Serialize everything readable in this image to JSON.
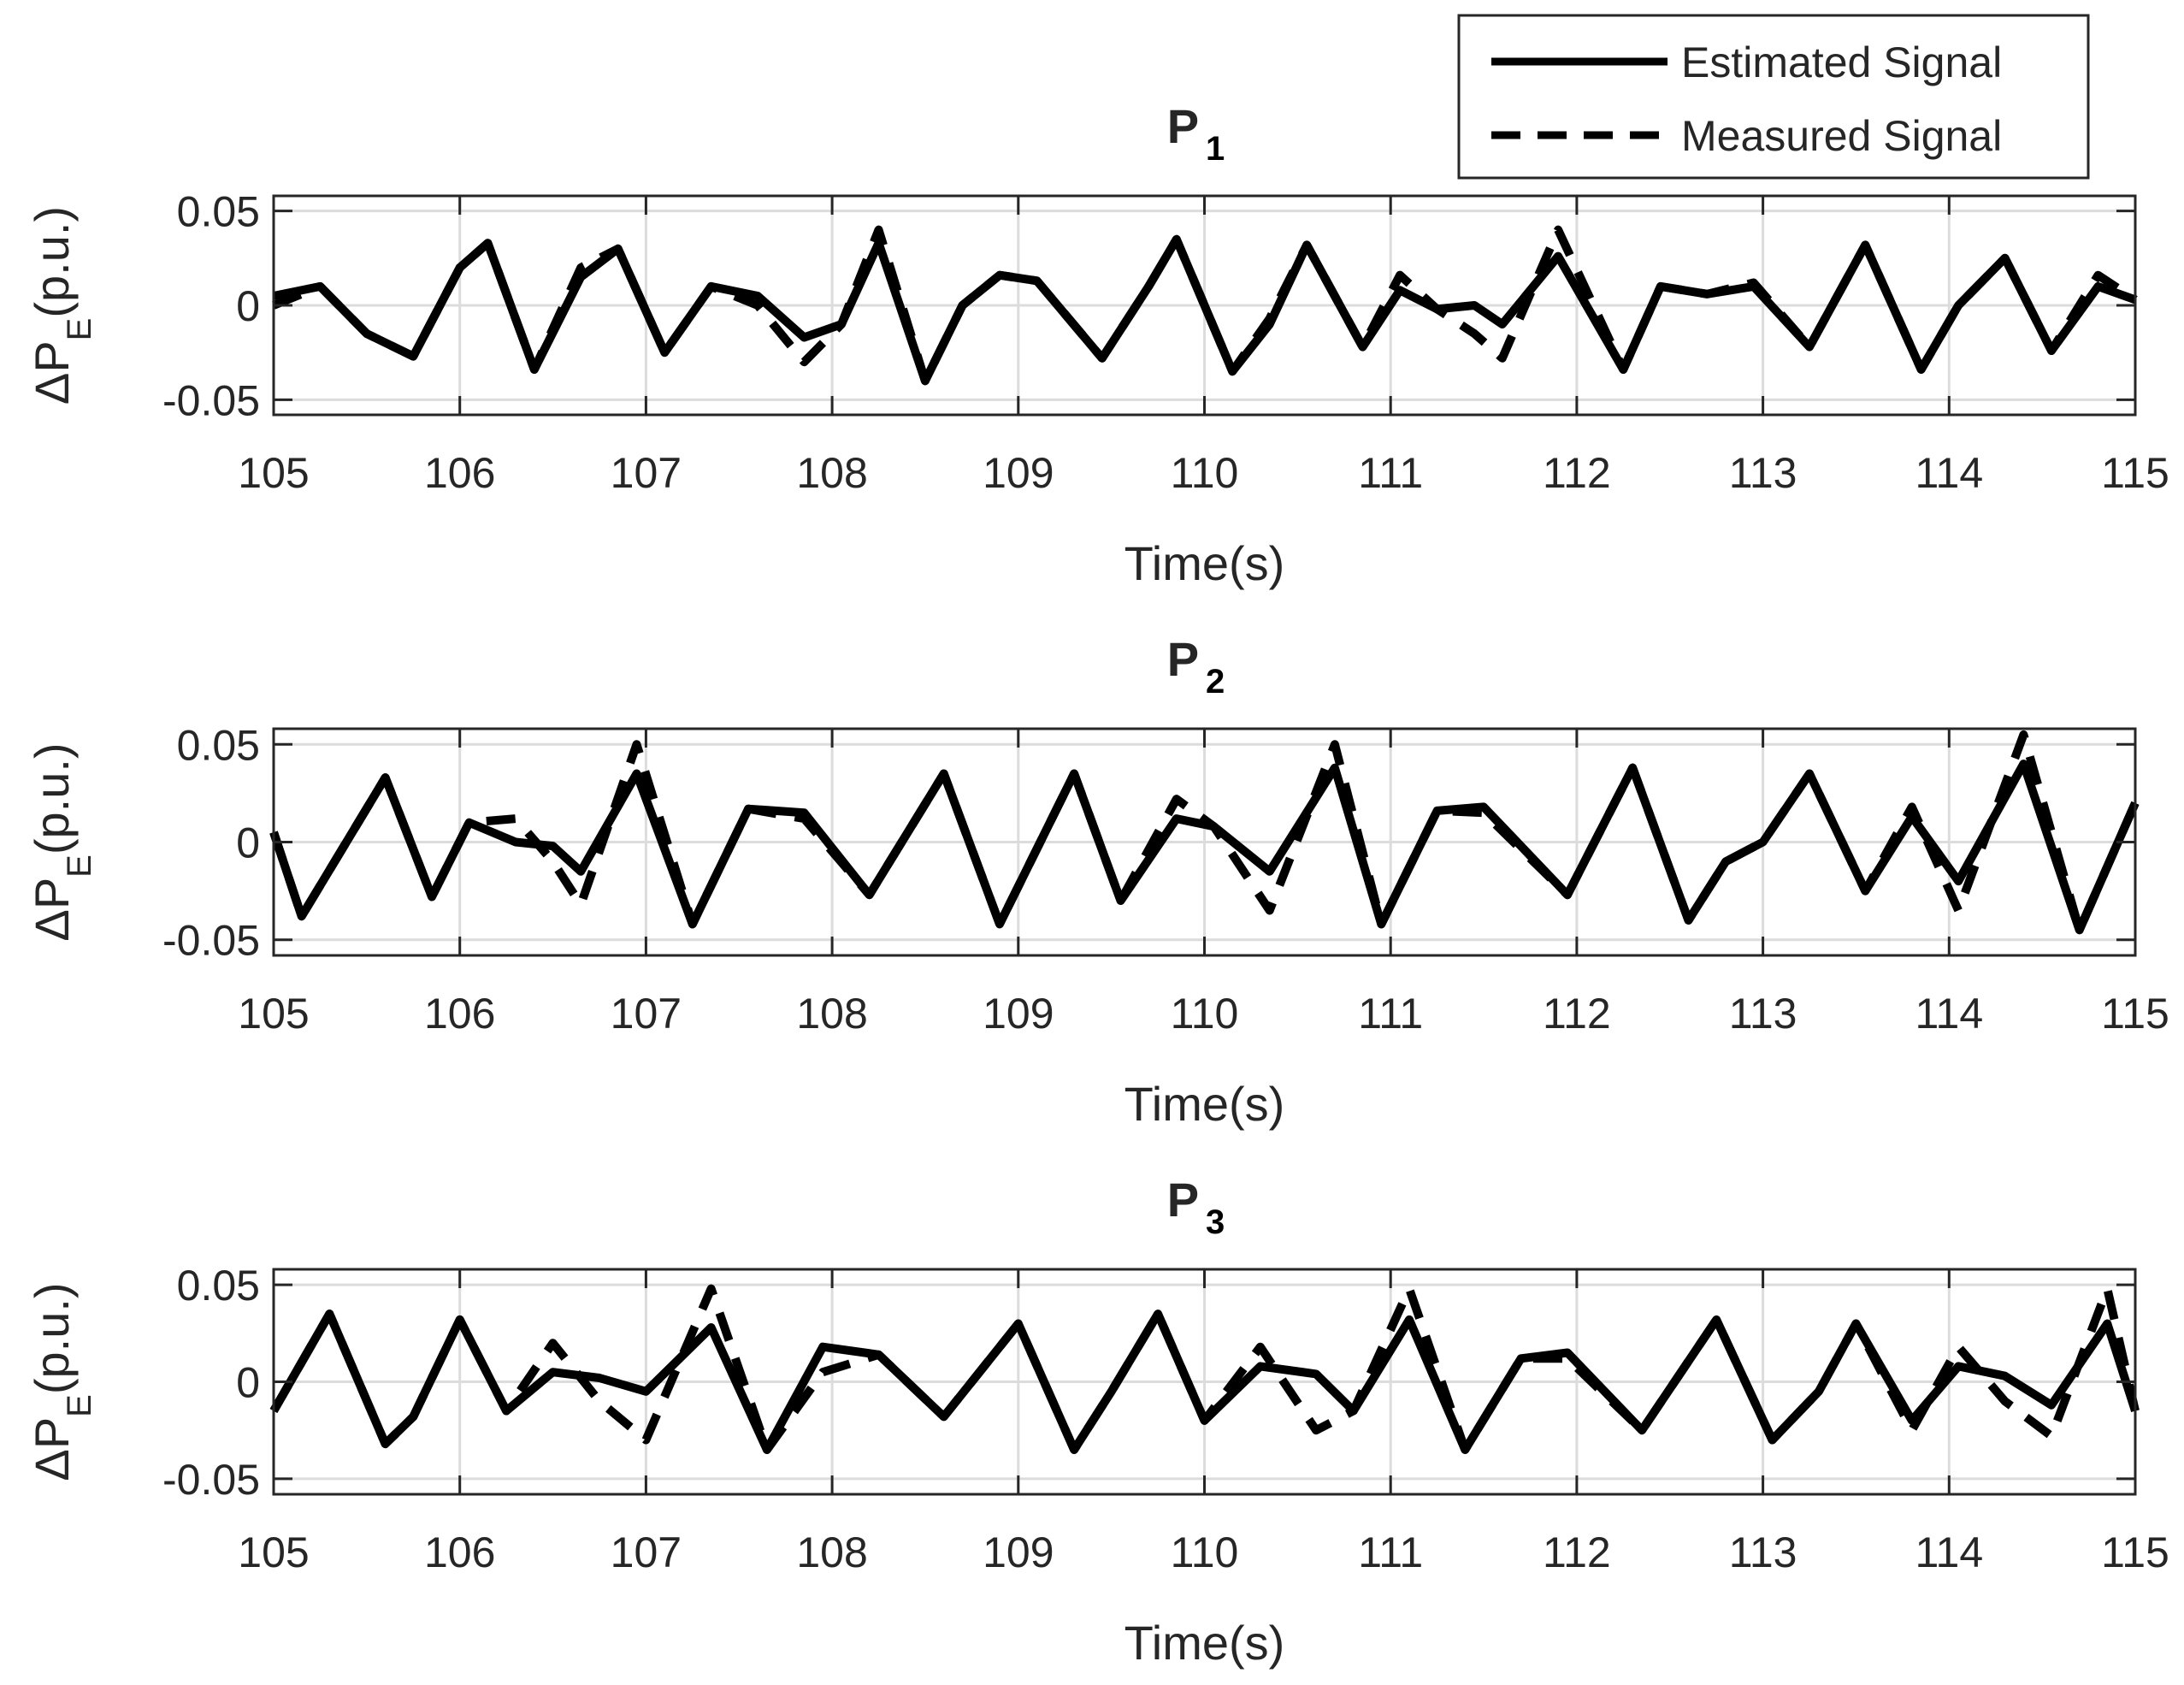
{
  "chart_data": [
    {
      "type": "line",
      "title": "P",
      "title_sub": "1",
      "ylabel": "ΔP",
      "ylabel_sub": "E",
      "ylabel_tail": "(p.u.)",
      "xlabel": "Time(s)",
      "xlim": [
        105,
        115
      ],
      "ylim": [
        -0.058,
        0.058
      ],
      "xticks": [
        105,
        106,
        107,
        108,
        109,
        110,
        111,
        112,
        113,
        114,
        115
      ],
      "xtick_labels": [
        "105",
        "106",
        "107",
        "108",
        "109",
        "110",
        "111",
        "112",
        "113",
        "114",
        "115"
      ],
      "yticks": [
        -0.05,
        0,
        0.05
      ],
      "ytick_labels": [
        "-0.05",
        "0",
        "0.05"
      ],
      "grid": true,
      "x": [
        105,
        105.25,
        105.5,
        105.75,
        106,
        106.15,
        106.4,
        106.65,
        106.85,
        107.1,
        107.35,
        107.6,
        107.85,
        108.05,
        108.25,
        108.5,
        108.7,
        108.9,
        109.1,
        109.45,
        109.7,
        109.85,
        110.15,
        110.35,
        110.55,
        110.85,
        111.05,
        111.25,
        111.45,
        111.6,
        111.9,
        112.25,
        112.45,
        112.7,
        112.95,
        113.25,
        113.55,
        113.85,
        114.05,
        114.3,
        114.55,
        114.8,
        115
      ],
      "series": [
        {
          "name": "Estimated Signal",
          "style": "solid",
          "values": [
            0.005,
            0.01,
            -0.015,
            -0.027,
            0.02,
            0.033,
            -0.034,
            0.015,
            0.03,
            -0.025,
            0.01,
            0.005,
            -0.017,
            -0.01,
            0.033,
            -0.04,
            0.0,
            0.016,
            0.013,
            -0.028,
            0.01,
            0.035,
            -0.035,
            -0.01,
            0.032,
            -0.022,
            0.008,
            -0.002,
            0.0,
            -0.01,
            0.026,
            -0.034,
            0.01,
            0.006,
            0.01,
            -0.022,
            0.032,
            -0.034,
            0.0,
            0.025,
            -0.024,
            0.01,
            0.003
          ]
        },
        {
          "name": "Measured Signal",
          "style": "dashed",
          "values": [
            0.0,
            0.01,
            -0.015,
            -0.027,
            0.02,
            0.033,
            -0.034,
            0.02,
            0.03,
            -0.025,
            0.01,
            0.0,
            -0.03,
            -0.01,
            0.04,
            -0.04,
            0.0,
            0.016,
            0.013,
            -0.028,
            0.01,
            0.035,
            -0.035,
            -0.007,
            0.032,
            -0.022,
            0.016,
            -0.002,
            -0.015,
            -0.028,
            0.04,
            -0.034,
            0.01,
            0.006,
            0.012,
            -0.022,
            0.032,
            -0.034,
            0.0,
            0.025,
            -0.024,
            0.016,
            0.003
          ]
        }
      ]
    },
    {
      "type": "line",
      "title": "P",
      "title_sub": "2",
      "ylabel": "ΔP",
      "ylabel_sub": "E",
      "ylabel_tail": "(p.u.)",
      "xlabel": "Time(s)",
      "xlim": [
        105,
        115
      ],
      "ylim": [
        -0.058,
        0.058
      ],
      "xticks": [
        105,
        106,
        107,
        108,
        109,
        110,
        111,
        112,
        113,
        114,
        115
      ],
      "xtick_labels": [
        "105",
        "106",
        "107",
        "108",
        "109",
        "110",
        "111",
        "112",
        "113",
        "114",
        "115"
      ],
      "yticks": [
        -0.05,
        0,
        0.05
      ],
      "ytick_labels": [
        "-0.05",
        "0",
        "0.05"
      ],
      "grid": true,
      "x": [
        105,
        105.15,
        105.6,
        105.85,
        106.05,
        106.3,
        106.5,
        106.65,
        106.95,
        107.25,
        107.55,
        107.85,
        108.2,
        108.6,
        108.9,
        109.3,
        109.55,
        109.85,
        110.05,
        110.35,
        110.7,
        110.95,
        111.25,
        111.5,
        111.95,
        112.3,
        112.6,
        112.8,
        113.0,
        113.25,
        113.55,
        113.8,
        114.05,
        114.4,
        114.7,
        115
      ],
      "series": [
        {
          "name": "Estimated Signal",
          "style": "solid",
          "values": [
            0.005,
            -0.038,
            0.033,
            -0.028,
            0.01,
            0.0,
            -0.002,
            -0.015,
            0.035,
            -0.042,
            0.017,
            0.015,
            -0.027,
            0.035,
            -0.042,
            0.035,
            -0.03,
            0.012,
            0.008,
            -0.015,
            0.038,
            -0.042,
            0.016,
            0.018,
            -0.027,
            0.038,
            -0.04,
            -0.01,
            0.0,
            0.035,
            -0.025,
            0.013,
            -0.02,
            0.04,
            -0.045,
            0.02
          ]
        },
        {
          "name": "Measured Signal",
          "style": "dashed",
          "values": [
            0.005,
            -0.038,
            0.033,
            -0.028,
            0.01,
            0.012,
            -0.01,
            -0.032,
            0.05,
            -0.042,
            0.017,
            0.012,
            -0.027,
            0.035,
            -0.042,
            0.035,
            -0.03,
            0.022,
            0.008,
            -0.035,
            0.05,
            -0.042,
            0.016,
            0.015,
            -0.027,
            0.038,
            -0.04,
            -0.01,
            0.0,
            0.035,
            -0.025,
            0.018,
            -0.035,
            0.055,
            -0.045,
            0.02
          ]
        }
      ]
    },
    {
      "type": "line",
      "title": "P",
      "title_sub": "3",
      "ylabel": "ΔP",
      "ylabel_sub": "E",
      "ylabel_tail": "(p.u.)",
      "xlabel": "Time(s)",
      "xlim": [
        105,
        115
      ],
      "ylim": [
        -0.058,
        0.058
      ],
      "xticks": [
        105,
        106,
        107,
        108,
        109,
        110,
        111,
        112,
        113,
        114,
        115
      ],
      "xtick_labels": [
        "105",
        "106",
        "107",
        "108",
        "109",
        "110",
        "111",
        "112",
        "113",
        "114",
        "115"
      ],
      "yticks": [
        -0.05,
        0,
        0.05
      ],
      "ytick_labels": [
        "-0.05",
        "0",
        "0.05"
      ],
      "grid": true,
      "x": [
        105,
        105.3,
        105.6,
        105.75,
        106.0,
        106.25,
        106.5,
        106.75,
        107.0,
        107.35,
        107.65,
        107.95,
        108.25,
        108.6,
        109.0,
        109.3,
        109.5,
        109.75,
        110.0,
        110.3,
        110.6,
        110.8,
        111.1,
        111.4,
        111.7,
        111.95,
        112.35,
        112.75,
        113.05,
        113.3,
        113.5,
        113.8,
        114.05,
        114.3,
        114.55,
        114.85,
        115
      ],
      "series": [
        {
          "name": "Estimated Signal",
          "style": "solid",
          "values": [
            -0.015,
            0.035,
            -0.032,
            -0.018,
            0.032,
            -0.015,
            0.005,
            0.002,
            -0.005,
            0.028,
            -0.035,
            0.018,
            0.014,
            -0.018,
            0.03,
            -0.035,
            -0.005,
            0.035,
            -0.02,
            0.008,
            0.004,
            -0.015,
            0.032,
            -0.035,
            0.012,
            0.015,
            -0.025,
            0.032,
            -0.03,
            -0.005,
            0.03,
            -0.02,
            0.008,
            0.003,
            -0.012,
            0.03,
            -0.015
          ]
        },
        {
          "name": "Measured Signal",
          "style": "dashed",
          "values": [
            -0.015,
            0.035,
            -0.032,
            -0.018,
            0.032,
            -0.015,
            0.02,
            -0.01,
            -0.03,
            0.048,
            -0.035,
            0.005,
            0.014,
            -0.018,
            0.03,
            -0.035,
            -0.005,
            0.035,
            -0.02,
            0.018,
            -0.025,
            -0.015,
            0.048,
            -0.035,
            0.012,
            0.012,
            -0.025,
            0.032,
            -0.03,
            -0.005,
            0.03,
            -0.025,
            0.018,
            -0.01,
            -0.028,
            0.048,
            -0.015
          ]
        }
      ]
    }
  ],
  "legend": {
    "placement": "top-right",
    "items": [
      {
        "label": "Estimated Signal",
        "style": "solid"
      },
      {
        "label": "Measured Signal",
        "style": "dashed"
      }
    ]
  }
}
